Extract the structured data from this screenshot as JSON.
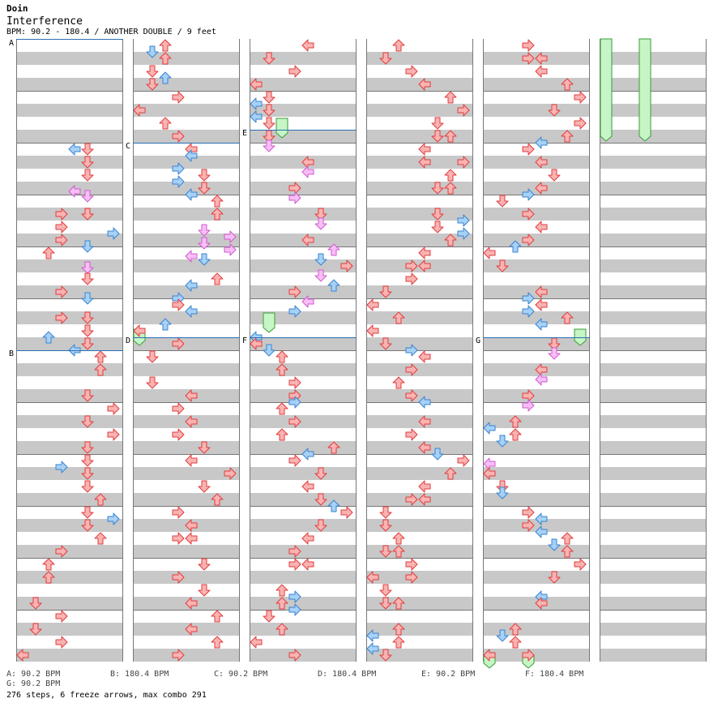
{
  "header": {
    "artist": "Doin",
    "title": "Interference",
    "info": "BPM: 90.2 - 180.4 / ANOTHER DOUBLE / 9 feet"
  },
  "segments": [
    {
      "label": "A",
      "bpm_text": "A: 90.2 BPM"
    },
    {
      "label": "B",
      "bpm_text": "B: 180.4 BPM"
    },
    {
      "label": "C",
      "bpm_text": "C: 90.2 BPM"
    },
    {
      "label": "D",
      "bpm_text": "D: 180.4 BPM"
    },
    {
      "label": "E",
      "bpm_text": "E: 90.2 BPM"
    },
    {
      "label": "F",
      "bpm_text": "F: 180.4 BPM"
    },
    {
      "label": "G",
      "bpm_text": "G: 90.2 BPM"
    }
  ],
  "footer": {
    "summary": "276 steps, 6 freeze arrows, max combo 291"
  },
  "colors": {
    "red_fill": "#f9b3b3",
    "red_stroke": "#e23c3c",
    "blue_fill": "#a7d1f5",
    "blue_stroke": "#3a83d1",
    "pink_fill": "#f7bff5",
    "pink_stroke": "#cf5ad0",
    "freeze_fill": "#c6f5c6",
    "freeze_stroke": "#3a9c3a",
    "segment_line": "#2a6fb3"
  }
}
